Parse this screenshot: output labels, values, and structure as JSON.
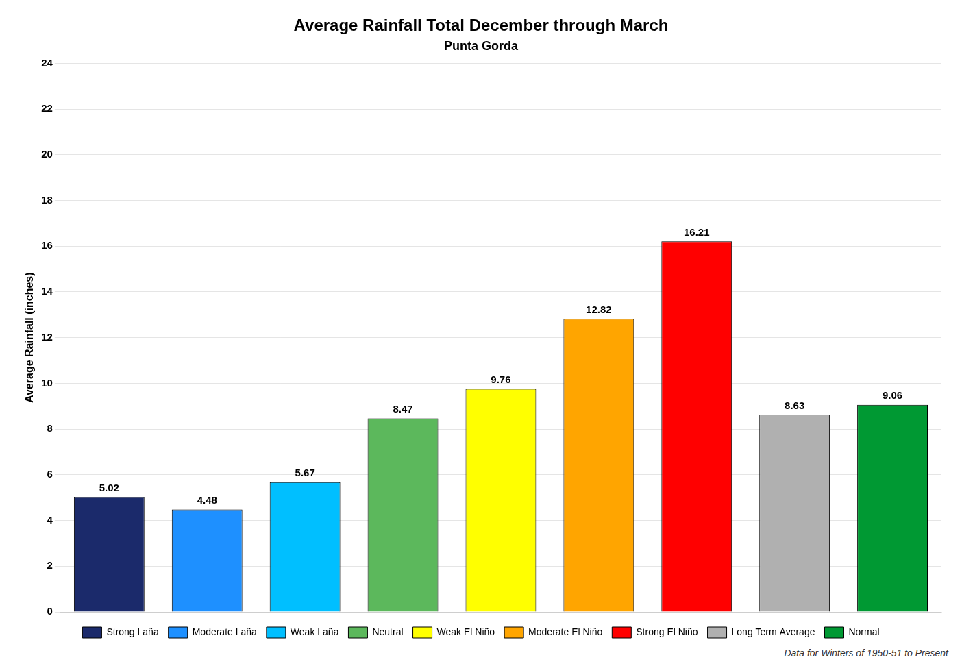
{
  "chart_data": {
    "type": "bar",
    "title": "Average Rainfall Total December through March",
    "subtitle": "Punta Gorda",
    "ylabel": "Average Rainfall (inches)",
    "categories": [
      "Strong Laña",
      "Moderate Laña",
      "Weak Laña",
      "Neutral",
      "Weak El Niño",
      "Moderate El Niño",
      "Strong El Niño",
      "Long Term Average",
      "Normal"
    ],
    "values": [
      5.02,
      4.48,
      5.67,
      8.47,
      9.76,
      12.82,
      16.21,
      8.63,
      9.06
    ],
    "colors": [
      "#1B2A6B",
      "#1E90FF",
      "#00BFFF",
      "#5CB85C",
      "#FFFF00",
      "#FFA500",
      "#FF0000",
      "#B0B0B0",
      "#009933"
    ],
    "ylim": [
      0,
      24
    ],
    "yticks": [
      0,
      2,
      4,
      6,
      8,
      10,
      12,
      14,
      16,
      18,
      20,
      22,
      24
    ],
    "grid": true,
    "legend": "bottom",
    "data_labels": true,
    "tick_labels": "y",
    "annotations": [
      "Data for Winters of 1950-51 to Present"
    ]
  }
}
